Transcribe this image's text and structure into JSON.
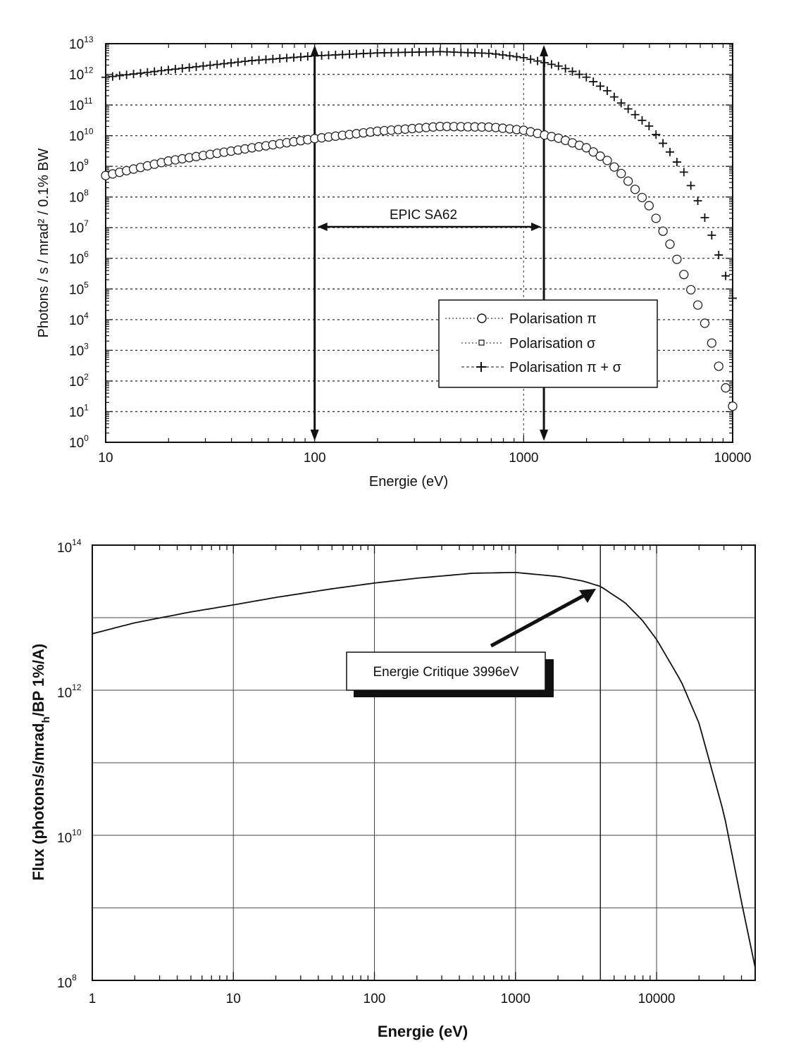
{
  "chart_data": [
    {
      "type": "scatter",
      "title": "",
      "xlabel": "Energie (eV)",
      "ylabel": "Photons / s / mrad² / 0.1% BW",
      "xscale": "log",
      "yscale": "log",
      "xlim": [
        10,
        10000
      ],
      "ylim": [
        1,
        10000000000000
      ],
      "x_ticks": [
        "10",
        "100",
        "1000",
        "10000"
      ],
      "y_ticks": [
        {
          "base": "10",
          "exp": "0"
        },
        {
          "base": "10",
          "exp": "1"
        },
        {
          "base": "10",
          "exp": "2"
        },
        {
          "base": "10",
          "exp": "3"
        },
        {
          "base": "10",
          "exp": "4"
        },
        {
          "base": "10",
          "exp": "5"
        },
        {
          "base": "10",
          "exp": "6"
        },
        {
          "base": "10",
          "exp": "7"
        },
        {
          "base": "10",
          "exp": "8"
        },
        {
          "base": "10",
          "exp": "9"
        },
        {
          "base": "10",
          "exp": "10"
        },
        {
          "base": "10",
          "exp": "11"
        },
        {
          "base": "10",
          "exp": "12"
        },
        {
          "base": "10",
          "exp": "13"
        }
      ],
      "grid": true,
      "legend_position": "lower-right",
      "legend": {
        "pi": "Polarisation π",
        "sigma": "Polarisation σ",
        "total": "Polarisation π + σ"
      },
      "series": [
        {
          "name": "Polarisation π",
          "marker": "circle",
          "x": [
            10,
            20,
            50,
            100,
            200,
            400,
            700,
            1000,
            1500,
            2000,
            2500,
            3000,
            4000,
            5000,
            6000,
            7000,
            8000,
            9000,
            10000
          ],
          "y": [
            500000000,
            1500000000,
            4000000000,
            8000000000,
            14000000000,
            20000000000,
            19000000000,
            15000000000,
            8000000000,
            4000000000,
            1600000000,
            500000000,
            50000000,
            3000000,
            200000,
            20000,
            1500,
            100,
            15
          ]
        },
        {
          "name": "Polarisation π + σ",
          "marker": "plus",
          "x": [
            10,
            20,
            50,
            100,
            200,
            400,
            700,
            1000,
            1500,
            2000,
            2500,
            3000,
            4000,
            5000,
            6000,
            7000,
            8000,
            9000,
            10000
          ],
          "y": [
            800000000000,
            1400000000000,
            2800000000000,
            4000000000000,
            5000000000000,
            5500000000000,
            4800000000000,
            3500000000000,
            1800000000000,
            800000000000,
            300000000000,
            100000000000,
            20000000000,
            3000000000,
            500000000,
            50000000,
            5000000,
            500000,
            50000
          ]
        }
      ],
      "annotations": [
        {
          "text": "EPIC SA62",
          "x_range": [
            100,
            1250
          ]
        }
      ],
      "vlines": [
        100,
        1250
      ]
    },
    {
      "type": "line",
      "title": "",
      "xlabel": "Energie (eV)",
      "ylabel": "Flux (photons/s/mrad",
      "ylabel_sub": "h",
      "ylabel_tail": "/BP 1%/A)",
      "xscale": "log",
      "yscale": "log",
      "xlim": [
        1,
        50000
      ],
      "ylim": [
        100000000,
        100000000000000
      ],
      "x_ticks": [
        "1",
        "10",
        "100",
        "1000",
        "10000"
      ],
      "y_ticks": [
        {
          "base": "10",
          "exp": "8"
        },
        {
          "base": "10",
          "exp": "10"
        },
        {
          "base": "10",
          "exp": "12"
        },
        {
          "base": "10",
          "exp": "14"
        }
      ],
      "grid": true,
      "series": [
        {
          "name": "",
          "x": [
            1,
            2,
            5,
            10,
            20,
            50,
            100,
            200,
            500,
            1000,
            2000,
            3000,
            4000,
            6000,
            8000,
            10000,
            15000,
            20000,
            30000,
            40000,
            50000
          ],
          "y": [
            6000000000000,
            8500000000000,
            12000000000000,
            15000000000000,
            19000000000000,
            25000000000000,
            30000000000000,
            35000000000000,
            41000000000000,
            42000000000000,
            37000000000000,
            32000000000000,
            27000000000000,
            16000000000000,
            9000000000000,
            5000000000000,
            1300000000000,
            350000000000,
            20000000000,
            1200000000,
            150000000
          ]
        }
      ],
      "vlines": [
        3996
      ],
      "annotations": [
        {
          "text": "Energie Critique 3996eV",
          "target_x": 3996
        }
      ]
    }
  ]
}
